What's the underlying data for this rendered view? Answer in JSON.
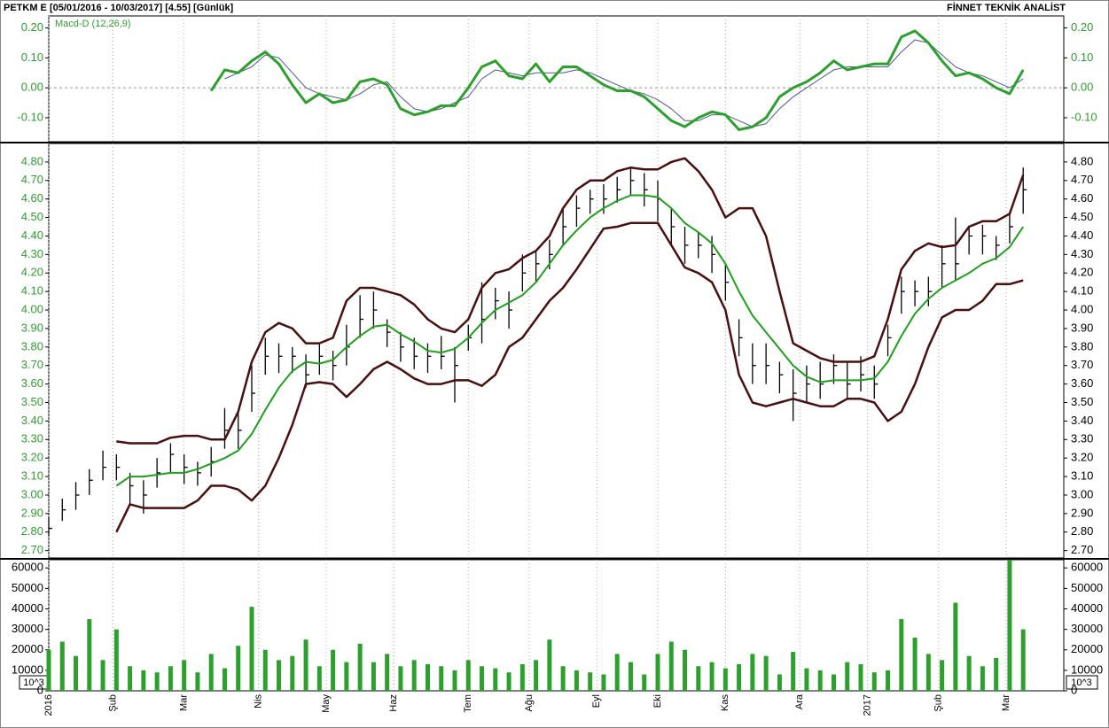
{
  "chart_data": [
    {
      "type": "line",
      "title": "PETKM E  [05/01/2016 - 10/03/2017]  [4.55]  [Günlük]",
      "source": "FİNNET TEKNİK ANALİST",
      "x": [
        0,
        4,
        8,
        12,
        16,
        20,
        24,
        28,
        32,
        36,
        40,
        44,
        48,
        52,
        56,
        60,
        64,
        68,
        72,
        76,
        80,
        84,
        88,
        92,
        96,
        100,
        104,
        108,
        112,
        116,
        120,
        124,
        128,
        132,
        136,
        140,
        144,
        148,
        152,
        156,
        160,
        164,
        168,
        172,
        176,
        180,
        184,
        188,
        192,
        196,
        200,
        204,
        208,
        212,
        216,
        220,
        224,
        228,
        232,
        236,
        240,
        244,
        248,
        252,
        256,
        260,
        264,
        268,
        272,
        276,
        280,
        284,
        288
      ],
      "xlim": [
        0,
        300
      ],
      "ylim": [
        -0.18,
        0.24
      ],
      "yticks": [
        {
          "value": 0.2,
          "label": "0.20"
        },
        {
          "value": 0.1,
          "label": "0.10"
        },
        {
          "value": 0,
          "label": "0.00"
        },
        {
          "value": -0.1,
          "label": "-0.10"
        }
      ],
      "tick_color": "#2e9e2e",
      "zero_line": true,
      "series": [
        {
          "name": "Macd-D (12,26,9)",
          "color": "#2ca02c",
          "width": 3,
          "values": [
            null,
            null,
            null,
            null,
            null,
            null,
            null,
            null,
            null,
            null,
            null,
            null,
            -0.01,
            0.06,
            0.05,
            0.09,
            0.12,
            0.08,
            0.01,
            -0.05,
            -0.02,
            -0.05,
            -0.04,
            0.02,
            0.03,
            0.01,
            -0.07,
            -0.09,
            -0.08,
            -0.06,
            -0.06,
            0.0,
            0.07,
            0.09,
            0.04,
            0.03,
            0.08,
            0.02,
            0.07,
            0.07,
            0.04,
            0.01,
            -0.01,
            -0.01,
            -0.03,
            -0.07,
            -0.11,
            -0.13,
            -0.1,
            -0.08,
            -0.09,
            -0.14,
            -0.13,
            -0.1,
            -0.03,
            0.0,
            0.02,
            0.05,
            0.09,
            0.06,
            0.07,
            0.08,
            0.08,
            0.17,
            0.19,
            0.15,
            0.09,
            0.04,
            0.05,
            0.03,
            0.0,
            -0.02,
            0.06
          ]
        },
        {
          "color": "#4a5a8a",
          "width": 1,
          "values": [
            null,
            null,
            null,
            null,
            null,
            null,
            null,
            null,
            null,
            null,
            null,
            null,
            null,
            0.03,
            0.05,
            0.07,
            0.11,
            0.1,
            0.05,
            0.0,
            -0.02,
            -0.03,
            -0.04,
            -0.02,
            0.01,
            0.02,
            -0.03,
            -0.07,
            -0.08,
            -0.07,
            -0.05,
            -0.03,
            0.03,
            0.06,
            0.05,
            0.04,
            0.05,
            0.05,
            0.05,
            0.06,
            0.05,
            0.03,
            0.01,
            -0.01,
            -0.02,
            -0.04,
            -0.07,
            -0.11,
            -0.11,
            -0.09,
            -0.09,
            -0.11,
            -0.13,
            -0.12,
            -0.07,
            -0.03,
            0.0,
            0.03,
            0.06,
            0.07,
            0.07,
            0.07,
            0.07,
            0.12,
            0.16,
            0.15,
            0.11,
            0.07,
            0.05,
            0.04,
            0.02,
            0.0,
            0.03
          ]
        }
      ]
    },
    {
      "type": "ohlc",
      "x": [
        0,
        4,
        8,
        12,
        16,
        20,
        24,
        28,
        32,
        36,
        40,
        44,
        48,
        52,
        56,
        60,
        64,
        68,
        72,
        76,
        80,
        84,
        88,
        92,
        96,
        100,
        104,
        108,
        112,
        116,
        120,
        124,
        128,
        132,
        136,
        140,
        144,
        148,
        152,
        156,
        160,
        164,
        168,
        172,
        176,
        180,
        184,
        188,
        192,
        196,
        200,
        204,
        208,
        212,
        216,
        220,
        224,
        228,
        232,
        236,
        240,
        244,
        248,
        252,
        256,
        260,
        264,
        268,
        272,
        276,
        280,
        284,
        288
      ],
      "xlim": [
        0,
        300
      ],
      "ylim": [
        2.66,
        4.9
      ],
      "yticks": [
        {
          "value": 4.8,
          "label": "4.80"
        },
        {
          "value": 4.7,
          "label": "4.70"
        },
        {
          "value": 4.6,
          "label": "4.60"
        },
        {
          "value": 4.5,
          "label": "4.50"
        },
        {
          "value": 4.4,
          "label": "4.40"
        },
        {
          "value": 4.3,
          "label": "4.30"
        },
        {
          "value": 4.2,
          "label": "4.20"
        },
        {
          "value": 4.1,
          "label": "4.10"
        },
        {
          "value": 4,
          "label": "4.00"
        },
        {
          "value": 3.9,
          "label": "3.90"
        },
        {
          "value": 3.8,
          "label": "3.80"
        },
        {
          "value": 3.7,
          "label": "3.70"
        },
        {
          "value": 3.6,
          "label": "3.60"
        },
        {
          "value": 3.5,
          "label": "3.50"
        },
        {
          "value": 3.4,
          "label": "3.40"
        },
        {
          "value": 3.3,
          "label": "3.30"
        },
        {
          "value": 3.2,
          "label": "3.20"
        },
        {
          "value": 3.1,
          "label": "3.10"
        },
        {
          "value": 3,
          "label": "3.00"
        },
        {
          "value": 2.9,
          "label": "2.90"
        },
        {
          "value": 2.8,
          "label": "2.80"
        },
        {
          "value": 2.7,
          "label": "2.70"
        }
      ],
      "tick_color": "#2e9e2e",
      "bar_color": "#000000",
      "high": [
        2.88,
        2.98,
        3.07,
        3.14,
        3.24,
        3.22,
        3.12,
        3.08,
        3.2,
        3.28,
        3.22,
        3.18,
        3.26,
        3.47,
        3.45,
        3.7,
        3.85,
        3.82,
        3.8,
        3.76,
        3.82,
        3.78,
        3.92,
        4.08,
        4.1,
        3.95,
        3.88,
        3.85,
        3.82,
        3.86,
        3.8,
        3.92,
        4.15,
        4.12,
        4.1,
        4.3,
        4.32,
        4.38,
        4.55,
        4.62,
        4.65,
        4.68,
        4.72,
        4.77,
        4.74,
        4.7,
        4.55,
        4.45,
        4.42,
        4.4,
        4.25,
        3.95,
        3.82,
        3.82,
        3.72,
        3.68,
        3.7,
        3.72,
        3.76,
        3.72,
        3.75,
        3.7,
        3.92,
        4.18,
        4.16,
        4.18,
        4.35,
        4.5,
        4.45,
        4.46,
        4.4,
        4.52,
        4.77
      ],
      "low": [
        2.78,
        2.86,
        2.92,
        3.0,
        3.08,
        3.08,
        2.95,
        2.9,
        3.04,
        3.12,
        3.06,
        3.05,
        3.1,
        3.25,
        3.25,
        3.45,
        3.65,
        3.66,
        3.66,
        3.58,
        3.65,
        3.62,
        3.7,
        3.85,
        3.9,
        3.8,
        3.72,
        3.68,
        3.66,
        3.68,
        3.5,
        3.78,
        3.82,
        3.95,
        3.9,
        4.1,
        4.15,
        4.22,
        4.35,
        4.45,
        4.52,
        4.52,
        4.58,
        4.62,
        4.56,
        4.48,
        4.35,
        4.25,
        4.28,
        4.2,
        4.05,
        3.75,
        3.6,
        3.6,
        3.55,
        3.4,
        3.5,
        3.52,
        3.6,
        3.52,
        3.56,
        3.52,
        3.75,
        3.98,
        4.02,
        4.02,
        4.12,
        4.16,
        4.3,
        4.3,
        4.27,
        4.36,
        4.52
      ],
      "close": [
        2.82,
        2.92,
        3.0,
        3.08,
        3.15,
        3.15,
        3.05,
        3.0,
        3.12,
        3.22,
        3.15,
        3.12,
        3.18,
        3.35,
        3.35,
        3.55,
        3.75,
        3.75,
        3.75,
        3.65,
        3.75,
        3.7,
        3.8,
        3.95,
        4.0,
        3.88,
        3.8,
        3.75,
        3.75,
        3.75,
        3.7,
        3.85,
        3.95,
        4.05,
        4.0,
        4.2,
        4.25,
        4.3,
        4.45,
        4.55,
        4.6,
        4.6,
        4.65,
        4.7,
        4.65,
        4.6,
        4.45,
        4.35,
        4.35,
        4.3,
        4.15,
        3.85,
        3.7,
        3.7,
        3.65,
        3.55,
        3.6,
        3.6,
        3.7,
        3.6,
        3.65,
        3.6,
        3.85,
        4.1,
        4.1,
        4.1,
        4.25,
        4.25,
        4.4,
        4.4,
        4.35,
        4.45,
        4.65
      ],
      "series": [
        {
          "color": "#4a0f0f",
          "width": 2.5,
          "values": [
            null,
            null,
            null,
            null,
            null,
            3.29,
            3.28,
            3.28,
            3.28,
            3.31,
            3.32,
            3.32,
            3.3,
            3.3,
            3.45,
            3.72,
            3.88,
            3.93,
            3.9,
            3.82,
            3.82,
            3.85,
            4.05,
            4.12,
            4.12,
            4.1,
            4.08,
            4.03,
            3.95,
            3.9,
            3.88,
            3.95,
            4.12,
            4.2,
            4.22,
            4.28,
            4.32,
            4.4,
            4.55,
            4.65,
            4.7,
            4.7,
            4.75,
            4.77,
            4.76,
            4.76,
            4.8,
            4.82,
            4.75,
            4.65,
            4.5,
            4.55,
            4.55,
            4.4,
            4.1,
            3.82,
            3.78,
            3.74,
            3.72,
            3.72,
            3.72,
            3.75,
            3.95,
            4.22,
            4.32,
            4.36,
            4.34,
            4.35,
            4.45,
            4.48,
            4.48,
            4.52,
            4.73
          ]
        },
        {
          "color": "#1ea01e",
          "width": 2,
          "values": [
            null,
            null,
            null,
            null,
            null,
            3.05,
            3.1,
            3.1,
            3.11,
            3.12,
            3.12,
            3.14,
            3.17,
            3.2,
            3.24,
            3.33,
            3.46,
            3.58,
            3.67,
            3.72,
            3.71,
            3.73,
            3.8,
            3.86,
            3.91,
            3.92,
            3.87,
            3.83,
            3.78,
            3.77,
            3.79,
            3.85,
            3.93,
            4.0,
            4.04,
            4.08,
            4.15,
            4.25,
            4.35,
            4.43,
            4.5,
            4.55,
            4.59,
            4.62,
            4.62,
            4.61,
            4.55,
            4.47,
            4.42,
            4.36,
            4.25,
            4.1,
            3.97,
            3.88,
            3.79,
            3.7,
            3.64,
            3.61,
            3.62,
            3.62,
            3.62,
            3.63,
            3.72,
            3.86,
            3.98,
            4.06,
            4.12,
            4.16,
            4.2,
            4.25,
            4.28,
            4.34,
            4.45
          ]
        },
        {
          "color": "#4a0f0f",
          "width": 2.5,
          "values": [
            null,
            null,
            null,
            null,
            null,
            2.8,
            2.95,
            2.93,
            2.93,
            2.93,
            2.93,
            2.97,
            3.05,
            3.05,
            3.03,
            2.97,
            3.05,
            3.2,
            3.38,
            3.6,
            3.61,
            3.6,
            3.53,
            3.6,
            3.68,
            3.72,
            3.68,
            3.63,
            3.6,
            3.6,
            3.62,
            3.62,
            3.59,
            3.65,
            3.8,
            3.85,
            3.95,
            4.05,
            4.12,
            4.22,
            4.33,
            4.44,
            4.45,
            4.47,
            4.47,
            4.47,
            4.35,
            4.23,
            4.2,
            4.15,
            4.0,
            3.65,
            3.5,
            3.48,
            3.5,
            3.52,
            3.5,
            3.48,
            3.48,
            3.52,
            3.52,
            3.5,
            3.4,
            3.45,
            3.6,
            3.8,
            3.96,
            4.0,
            4.0,
            4.05,
            4.14,
            4.14,
            4.16
          ]
        }
      ]
    },
    {
      "type": "bar",
      "x": [
        0,
        4,
        8,
        12,
        16,
        20,
        24,
        28,
        32,
        36,
        40,
        44,
        48,
        52,
        56,
        60,
        64,
        68,
        72,
        76,
        80,
        84,
        88,
        92,
        96,
        100,
        104,
        108,
        112,
        116,
        120,
        124,
        128,
        132,
        136,
        140,
        144,
        148,
        152,
        156,
        160,
        164,
        168,
        172,
        176,
        180,
        184,
        188,
        192,
        196,
        200,
        204,
        208,
        212,
        216,
        220,
        224,
        228,
        232,
        236,
        240,
        244,
        248,
        252,
        256,
        260,
        264,
        268,
        272,
        276,
        280,
        284,
        288
      ],
      "xlim": [
        0,
        300
      ],
      "xticks": [
        {
          "value": 0,
          "label": "2016"
        },
        {
          "value": 19,
          "label": "Şub"
        },
        {
          "value": 40,
          "label": "Mar"
        },
        {
          "value": 62,
          "label": "Nis"
        },
        {
          "value": 82,
          "label": "May"
        },
        {
          "value": 102,
          "label": "Haz"
        },
        {
          "value": 124,
          "label": "Tem"
        },
        {
          "value": 142,
          "label": "Ağu"
        },
        {
          "value": 162,
          "label": "Eyl"
        },
        {
          "value": 180,
          "label": "Eki"
        },
        {
          "value": 200,
          "label": "Kas"
        },
        {
          "value": 222,
          "label": "Ara"
        },
        {
          "value": 242,
          "label": "2017"
        },
        {
          "value": 263,
          "label": "Şub"
        },
        {
          "value": 283,
          "label": "Mar"
        }
      ],
      "ylim": [
        0,
        64000
      ],
      "yticks": [
        0,
        10000,
        20000,
        30000,
        40000,
        50000,
        60000
      ],
      "tick_color": "#000000",
      "unit_label": "10^3",
      "color": "#2ca02c",
      "values": [
        20000,
        24000,
        17000,
        35000,
        15000,
        30000,
        12000,
        10000,
        9000,
        12000,
        15000,
        9000,
        18000,
        11000,
        22000,
        41000,
        20000,
        15000,
        17000,
        25000,
        12000,
        20000,
        14000,
        23000,
        14000,
        18000,
        12000,
        15000,
        13000,
        12000,
        10000,
        15000,
        12000,
        11000,
        9000,
        13000,
        15000,
        25000,
        12000,
        10000,
        9000,
        8000,
        18000,
        14000,
        8000,
        18000,
        24000,
        20000,
        12000,
        14000,
        11000,
        13000,
        18000,
        17000,
        8000,
        19000,
        11000,
        10000,
        8000,
        14000,
        13000,
        9000,
        10000,
        35000,
        26000,
        18000,
        15000,
        43000,
        17000,
        12000,
        16000,
        64000,
        30000
      ]
    }
  ]
}
